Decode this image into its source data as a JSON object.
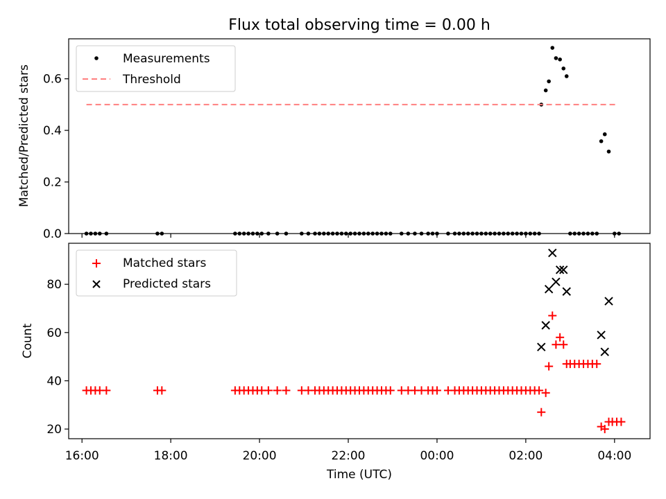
{
  "chart_data": [
    {
      "type": "scatter",
      "title": "Flux total observing time = 0.00 h",
      "ylabel": "Matched/Predicted stars",
      "xlabel": "",
      "x_unit": "hours (UTC) from 16:00, continuing past midnight",
      "xlim": [
        15.7,
        28.8
      ],
      "ylim": [
        0,
        0.755
      ],
      "yticks": [
        0.0,
        0.2,
        0.4,
        0.6
      ],
      "ytick_labels": [
        "0.0",
        "0.2",
        "0.4",
        "0.6"
      ],
      "legend_position": "top-left",
      "series": [
        {
          "name": "Measurements",
          "color": "#000000",
          "marker": "dot",
          "points": [
            [
              16.1,
              0
            ],
            [
              16.2,
              0
            ],
            [
              16.3,
              0
            ],
            [
              16.4,
              0
            ],
            [
              16.55,
              0
            ],
            [
              17.7,
              0
            ],
            [
              17.8,
              0
            ],
            [
              19.45,
              0
            ],
            [
              19.55,
              0
            ],
            [
              19.65,
              0
            ],
            [
              19.75,
              0
            ],
            [
              19.85,
              0
            ],
            [
              19.95,
              0
            ],
            [
              20.05,
              0
            ],
            [
              20.2,
              0
            ],
            [
              20.4,
              0
            ],
            [
              20.6,
              0
            ],
            [
              20.95,
              0
            ],
            [
              21.1,
              0
            ],
            [
              21.25,
              0
            ],
            [
              21.35,
              0
            ],
            [
              21.45,
              0
            ],
            [
              21.55,
              0
            ],
            [
              21.65,
              0
            ],
            [
              21.75,
              0
            ],
            [
              21.85,
              0
            ],
            [
              21.95,
              0
            ],
            [
              22.05,
              0
            ],
            [
              22.15,
              0
            ],
            [
              22.25,
              0
            ],
            [
              22.35,
              0
            ],
            [
              22.45,
              0
            ],
            [
              22.55,
              0
            ],
            [
              22.65,
              0
            ],
            [
              22.75,
              0
            ],
            [
              22.85,
              0
            ],
            [
              22.95,
              0
            ],
            [
              23.2,
              0
            ],
            [
              23.35,
              0
            ],
            [
              23.5,
              0
            ],
            [
              23.65,
              0
            ],
            [
              23.8,
              0
            ],
            [
              23.9,
              0
            ],
            [
              24.0,
              0
            ],
            [
              24.25,
              0
            ],
            [
              24.4,
              0
            ],
            [
              24.5,
              0
            ],
            [
              24.6,
              0
            ],
            [
              24.7,
              0
            ],
            [
              24.8,
              0
            ],
            [
              24.9,
              0
            ],
            [
              25.0,
              0
            ],
            [
              25.1,
              0
            ],
            [
              25.2,
              0
            ],
            [
              25.3,
              0
            ],
            [
              25.4,
              0
            ],
            [
              25.5,
              0
            ],
            [
              25.6,
              0
            ],
            [
              25.7,
              0
            ],
            [
              25.8,
              0
            ],
            [
              25.9,
              0
            ],
            [
              26.0,
              0
            ],
            [
              26.1,
              0
            ],
            [
              26.2,
              0
            ],
            [
              26.3,
              0
            ],
            [
              26.35,
              0.5
            ],
            [
              26.45,
              0.555
            ],
            [
              26.52,
              0.59
            ],
            [
              26.6,
              0.72
            ],
            [
              26.68,
              0.68
            ],
            [
              26.77,
              0.675
            ],
            [
              26.85,
              0.64
            ],
            [
              26.92,
              0.61
            ],
            [
              27.0,
              0
            ],
            [
              27.1,
              0
            ],
            [
              27.2,
              0
            ],
            [
              27.3,
              0
            ],
            [
              27.4,
              0
            ],
            [
              27.5,
              0
            ],
            [
              27.6,
              0
            ],
            [
              27.7,
              0.358
            ],
            [
              27.78,
              0.385
            ],
            [
              27.87,
              0.318
            ],
            [
              28.0,
              0
            ],
            [
              28.1,
              0
            ]
          ]
        },
        {
          "name": "Threshold",
          "color": "#ff7f7f",
          "style": "dashed",
          "x": [
            16.1,
            28.05
          ],
          "y": [
            0.5,
            0.5
          ]
        }
      ]
    },
    {
      "type": "scatter",
      "title": "",
      "ylabel": "Count",
      "xlabel": "Time (UTC)",
      "xlim": [
        15.7,
        28.8
      ],
      "ylim": [
        16,
        97
      ],
      "yticks": [
        20,
        40,
        60,
        80
      ],
      "ytick_labels": [
        "20",
        "40",
        "60",
        "80"
      ],
      "xticks": [
        16,
        18,
        20,
        22,
        24,
        26,
        28
      ],
      "xtick_labels": [
        "16:00",
        "18:00",
        "20:00",
        "22:00",
        "00:00",
        "02:00",
        "04:00"
      ],
      "legend_position": "top-left",
      "series": [
        {
          "name": "Matched stars",
          "color": "#ff0000",
          "marker": "plus",
          "points": [
            [
              16.1,
              36
            ],
            [
              16.2,
              36
            ],
            [
              16.3,
              36
            ],
            [
              16.4,
              36
            ],
            [
              16.55,
              36
            ],
            [
              17.7,
              36
            ],
            [
              17.8,
              36
            ],
            [
              19.45,
              36
            ],
            [
              19.55,
              36
            ],
            [
              19.65,
              36
            ],
            [
              19.75,
              36
            ],
            [
              19.85,
              36
            ],
            [
              19.95,
              36
            ],
            [
              20.05,
              36
            ],
            [
              20.2,
              36
            ],
            [
              20.4,
              36
            ],
            [
              20.6,
              36
            ],
            [
              20.95,
              36
            ],
            [
              21.1,
              36
            ],
            [
              21.25,
              36
            ],
            [
              21.35,
              36
            ],
            [
              21.45,
              36
            ],
            [
              21.55,
              36
            ],
            [
              21.65,
              36
            ],
            [
              21.75,
              36
            ],
            [
              21.85,
              36
            ],
            [
              21.95,
              36
            ],
            [
              22.05,
              36
            ],
            [
              22.15,
              36
            ],
            [
              22.25,
              36
            ],
            [
              22.35,
              36
            ],
            [
              22.45,
              36
            ],
            [
              22.55,
              36
            ],
            [
              22.65,
              36
            ],
            [
              22.75,
              36
            ],
            [
              22.85,
              36
            ],
            [
              22.95,
              36
            ],
            [
              23.2,
              36
            ],
            [
              23.35,
              36
            ],
            [
              23.5,
              36
            ],
            [
              23.65,
              36
            ],
            [
              23.8,
              36
            ],
            [
              23.9,
              36
            ],
            [
              24.0,
              36
            ],
            [
              24.25,
              36
            ],
            [
              24.4,
              36
            ],
            [
              24.5,
              36
            ],
            [
              24.6,
              36
            ],
            [
              24.7,
              36
            ],
            [
              24.8,
              36
            ],
            [
              24.9,
              36
            ],
            [
              25.0,
              36
            ],
            [
              25.1,
              36
            ],
            [
              25.2,
              36
            ],
            [
              25.3,
              36
            ],
            [
              25.4,
              36
            ],
            [
              25.5,
              36
            ],
            [
              25.6,
              36
            ],
            [
              25.7,
              36
            ],
            [
              25.8,
              36
            ],
            [
              25.9,
              36
            ],
            [
              26.0,
              36
            ],
            [
              26.1,
              36
            ],
            [
              26.2,
              36
            ],
            [
              26.3,
              36
            ],
            [
              26.35,
              27
            ],
            [
              26.45,
              35
            ],
            [
              26.52,
              46
            ],
            [
              26.6,
              67
            ],
            [
              26.68,
              55
            ],
            [
              26.77,
              58
            ],
            [
              26.85,
              55
            ],
            [
              26.92,
              47
            ],
            [
              27.0,
              47
            ],
            [
              27.1,
              47
            ],
            [
              27.2,
              47
            ],
            [
              27.3,
              47
            ],
            [
              27.4,
              47
            ],
            [
              27.5,
              47
            ],
            [
              27.6,
              47
            ],
            [
              27.7,
              21
            ],
            [
              27.78,
              20
            ],
            [
              27.87,
              23
            ],
            [
              27.95,
              23
            ],
            [
              28.05,
              23
            ],
            [
              28.15,
              23
            ]
          ]
        },
        {
          "name": "Predicted stars",
          "color": "#000000",
          "marker": "x",
          "points": [
            [
              26.35,
              54
            ],
            [
              26.45,
              63
            ],
            [
              26.52,
              78
            ],
            [
              26.6,
              93
            ],
            [
              26.68,
              81
            ],
            [
              26.77,
              86
            ],
            [
              26.85,
              86
            ],
            [
              26.92,
              77
            ],
            [
              27.7,
              59
            ],
            [
              27.78,
              52
            ],
            [
              27.87,
              73
            ]
          ]
        }
      ]
    }
  ]
}
